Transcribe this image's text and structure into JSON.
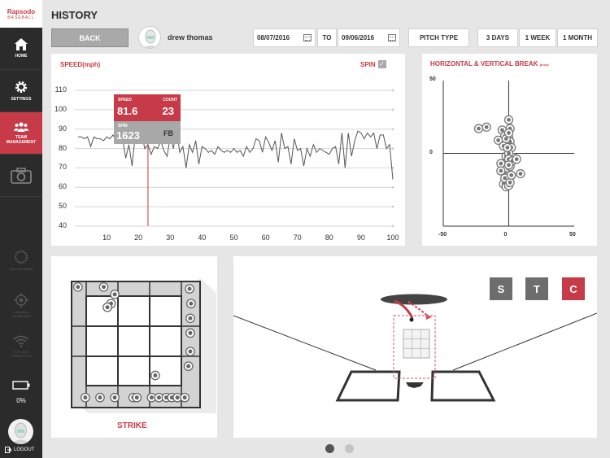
{
  "sidebar": {
    "logo_line1": "Rapsodo",
    "logo_line2": "BASEBALL",
    "nav": [
      {
        "label": "HOME",
        "icon": "home-icon"
      },
      {
        "label": "SETTINGS",
        "icon": "gear-icon"
      },
      {
        "label": "TEAM MANAGEMENT",
        "icon": "team-icon"
      },
      {
        "label": "",
        "icon": "camera-icon"
      }
    ],
    "status": [
      {
        "label": "Sync Completed",
        "icon": "sync-icon"
      },
      {
        "label": "Calibration: CALIBRATED",
        "icon": "target-icon"
      },
      {
        "label": "ECS: NOT CONNECTED",
        "icon": "wifi-icon"
      }
    ],
    "battery_pct": "0%",
    "logout": "LOGOUT"
  },
  "header": {
    "title": "HISTORY",
    "back": "BACK",
    "user_name": "drew thomas",
    "date_from": "08/07/2016",
    "to": "TO",
    "date_to": "09/06/2016",
    "pitch_type": "PITCH TYPE",
    "ranges": [
      "3 DAYS",
      "1 WEEK",
      "1 MONTH"
    ]
  },
  "speed_panel": {
    "title": "SPEED(mph)",
    "spin_label": "SPIN",
    "spin_checked": "✓",
    "tooltip": {
      "speed_label": "SPEED",
      "speed_value": "81.6",
      "count_label": "COUNT",
      "count_value": "23",
      "spin_label": "SPIN",
      "spin_value": "1623",
      "pitch": "FB"
    }
  },
  "break_panel": {
    "title": "HORIZONTAL & VERTICAL BREAK",
    "unit": "(inch)"
  },
  "strike_panel": {
    "label": "STRIKE"
  },
  "view_panel": {
    "buttons": [
      "S",
      "T",
      "C"
    ]
  },
  "pager": {
    "pages": 2,
    "current": 1
  },
  "colors": {
    "accent": "#c73a47",
    "sidebar": "#2b2b2b",
    "muted": "#a8a8a8"
  },
  "chart_data": [
    {
      "type": "line",
      "title": "SPEED(mph)",
      "xlim": [
        0,
        100
      ],
      "ylim": [
        40,
        110
      ],
      "xticks": [
        10,
        20,
        30,
        40,
        50,
        60,
        70,
        80,
        90,
        100
      ],
      "yticks": [
        40,
        50,
        60,
        70,
        80,
        90,
        100,
        110
      ],
      "selected_x": 23,
      "x": [
        1,
        2,
        3,
        4,
        5,
        6,
        7,
        8,
        9,
        10,
        11,
        12,
        13,
        14,
        15,
        16,
        17,
        18,
        19,
        20,
        21,
        22,
        23,
        24,
        25,
        26,
        27,
        28,
        29,
        30,
        31,
        32,
        33,
        34,
        35,
        36,
        37,
        38,
        39,
        40,
        41,
        42,
        43,
        44,
        45,
        46,
        47,
        48,
        49,
        50,
        51,
        52,
        53,
        54,
        55,
        56,
        57,
        58,
        59,
        60,
        61,
        62,
        63,
        64,
        65,
        66,
        67,
        68,
        69,
        70,
        71,
        72,
        73,
        74,
        75,
        76,
        77,
        78,
        79,
        80,
        81,
        82,
        83,
        84,
        85,
        86,
        87,
        88,
        89,
        90,
        91,
        92,
        93,
        94,
        95,
        96,
        97,
        98,
        99,
        100
      ],
      "y": [
        86,
        86,
        85,
        86,
        81,
        86,
        85,
        85,
        84,
        86,
        85,
        87,
        84,
        86,
        85,
        75,
        82,
        71,
        87,
        83,
        88,
        80,
        82,
        77,
        81,
        80,
        84,
        79,
        76,
        86,
        80,
        90,
        78,
        81,
        70,
        82,
        78,
        84,
        72,
        81,
        80,
        78,
        79,
        77,
        81,
        79,
        78,
        79,
        78,
        80,
        78,
        79,
        76,
        81,
        78,
        80,
        85,
        84,
        78,
        86,
        83,
        79,
        84,
        73,
        88,
        80,
        81,
        72,
        85,
        79,
        80,
        71,
        80,
        76,
        82,
        78,
        80,
        79,
        78,
        77,
        80,
        81,
        72,
        88,
        70,
        88,
        76,
        84,
        89,
        88,
        85,
        88,
        86,
        88,
        80,
        87,
        87,
        80,
        82,
        64
      ]
    },
    {
      "type": "scatter",
      "title": "HORIZONTAL & VERTICAL BREAK",
      "xlim": [
        -50,
        50
      ],
      "ylim": [
        -50,
        50
      ],
      "xticks": [
        -50,
        0,
        50
      ],
      "yticks": [
        0,
        50
      ],
      "x": [
        -23,
        -17,
        0,
        -5,
        1,
        -3,
        0,
        1,
        -2,
        0,
        2,
        4,
        -8,
        -4,
        -6,
        -2,
        0,
        0,
        -3,
        -1,
        1,
        3,
        6,
        9,
        -4,
        -2,
        0,
        -3,
        1,
        -6,
        -1,
        0,
        2
      ],
      "y": [
        17,
        18,
        23,
        16,
        17,
        12,
        11,
        8,
        10,
        14,
        4,
        -3,
        9,
        5,
        -7,
        -2,
        0,
        -4,
        -13,
        -10,
        -9,
        -5,
        -4,
        -14,
        -21,
        -23,
        -22,
        -17,
        -20,
        -12,
        4,
        -8,
        -15
      ]
    },
    {
      "type": "scatter",
      "title": "STRIKE",
      "grid": "3x3",
      "xlim": [
        -1.7,
        1.7
      ],
      "ylim": [
        -1.7,
        1.7
      ],
      "x": [
        -1.55,
        -0.85,
        -0.55,
        -0.65,
        -0.75,
        1.48,
        1.52,
        1.5,
        1.5,
        1.5,
        1.45,
        -0.95,
        -0.55,
        -1.35,
        -0.05,
        0.05,
        0.45,
        0.65,
        0.85,
        1.0,
        1.15,
        1.35,
        0.55
      ],
      "y": [
        1.55,
        1.55,
        1.35,
        1.1,
        1.0,
        1.5,
        1.1,
        0.7,
        0.3,
        -0.2,
        -0.6,
        -1.45,
        -1.45,
        -1.45,
        -1.45,
        -1.45,
        -1.45,
        -1.45,
        -1.45,
        -1.45,
        -1.45,
        -1.45,
        -0.85
      ]
    }
  ]
}
